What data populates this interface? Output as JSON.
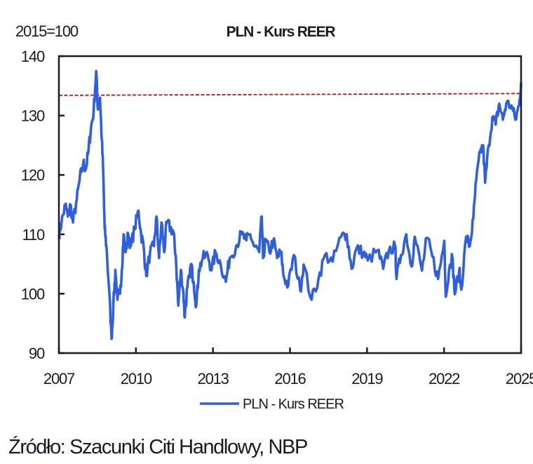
{
  "chart_data": {
    "type": "line",
    "title": "PLN - Kurs REER",
    "unit_label": "2015=100",
    "xlabel": "",
    "ylabel": "",
    "xlim": [
      2007,
      2025
    ],
    "ylim": [
      90,
      140
    ],
    "x_ticks": [
      2007,
      2010,
      2013,
      2016,
      2019,
      2022,
      2025
    ],
    "y_ticks": [
      90,
      100,
      110,
      120,
      130,
      140
    ],
    "grid": false,
    "legend": "bottom-center",
    "reference_line": {
      "style": "dashed",
      "color": "#b01818",
      "y_start": 133.4,
      "y_end": 133.7
    },
    "series": [
      {
        "name": "PLN - Kurs REER",
        "color": "#2f5fdc",
        "points": [
          [
            2007.0,
            110
          ],
          [
            2007.1,
            112
          ],
          [
            2007.25,
            115
          ],
          [
            2007.35,
            113
          ],
          [
            2007.45,
            115
          ],
          [
            2007.55,
            112
          ],
          [
            2007.7,
            116
          ],
          [
            2007.8,
            119
          ],
          [
            2007.95,
            122
          ],
          [
            2008.05,
            121
          ],
          [
            2008.15,
            124
          ],
          [
            2008.25,
            128
          ],
          [
            2008.35,
            130.5
          ],
          [
            2008.45,
            137.5
          ],
          [
            2008.52,
            131
          ],
          [
            2008.6,
            133
          ],
          [
            2008.67,
            126
          ],
          [
            2008.73,
            120
          ],
          [
            2008.78,
            111
          ],
          [
            2008.85,
            108
          ],
          [
            2008.95,
            101
          ],
          [
            2009.05,
            92.4
          ],
          [
            2009.12,
            98
          ],
          [
            2009.2,
            104
          ],
          [
            2009.28,
            99
          ],
          [
            2009.38,
            100
          ],
          [
            2009.45,
            104
          ],
          [
            2009.52,
            110
          ],
          [
            2009.6,
            107
          ],
          [
            2009.7,
            110
          ],
          [
            2009.8,
            108
          ],
          [
            2009.95,
            111
          ],
          [
            2010.1,
            114
          ],
          [
            2010.2,
            110
          ],
          [
            2010.3,
            108
          ],
          [
            2010.4,
            103
          ],
          [
            2010.55,
            107
          ],
          [
            2010.7,
            108
          ],
          [
            2010.8,
            113
          ],
          [
            2010.9,
            106
          ],
          [
            2011.0,
            112
          ],
          [
            2011.1,
            107
          ],
          [
            2011.2,
            112
          ],
          [
            2011.35,
            111
          ],
          [
            2011.45,
            110.5
          ],
          [
            2011.55,
            106.5
          ],
          [
            2011.65,
            98
          ],
          [
            2011.75,
            104
          ],
          [
            2011.85,
            100
          ],
          [
            2011.9,
            96
          ],
          [
            2012.0,
            101
          ],
          [
            2012.1,
            103
          ],
          [
            2012.15,
            105
          ],
          [
            2012.25,
            102
          ],
          [
            2012.35,
            98
          ],
          [
            2012.45,
            104
          ],
          [
            2012.6,
            106
          ],
          [
            2012.8,
            106.5
          ],
          [
            2012.95,
            104
          ],
          [
            2013.1,
            107
          ],
          [
            2013.3,
            105
          ],
          [
            2013.5,
            102
          ],
          [
            2013.65,
            106
          ],
          [
            2013.9,
            108
          ],
          [
            2014.1,
            110
          ],
          [
            2014.3,
            109
          ],
          [
            2014.45,
            110
          ],
          [
            2014.6,
            108
          ],
          [
            2014.8,
            107
          ],
          [
            2014.9,
            113
          ],
          [
            2014.95,
            106
          ],
          [
            2015.05,
            109
          ],
          [
            2015.2,
            107
          ],
          [
            2015.35,
            109
          ],
          [
            2015.5,
            106
          ],
          [
            2015.65,
            107
          ],
          [
            2015.75,
            103
          ],
          [
            2015.93,
            101.3
          ],
          [
            2016.15,
            106.5
          ],
          [
            2016.4,
            100.6
          ],
          [
            2016.53,
            104.9
          ],
          [
            2016.84,
            99
          ],
          [
            2017.11,
            102.5
          ],
          [
            2017.36,
            106.5
          ],
          [
            2017.66,
            105.4
          ],
          [
            2017.99,
            109.6
          ],
          [
            2018.21,
            110
          ],
          [
            2018.4,
            104.2
          ],
          [
            2018.59,
            107.6
          ],
          [
            2018.86,
            106.9
          ],
          [
            2019.03,
            105.6
          ],
          [
            2019.41,
            107.3
          ],
          [
            2019.63,
            104.2
          ],
          [
            2019.85,
            107.3
          ],
          [
            2020.1,
            107.9
          ],
          [
            2020.15,
            102.5
          ],
          [
            2020.32,
            106.5
          ],
          [
            2020.53,
            110
          ],
          [
            2020.73,
            104.6
          ],
          [
            2020.86,
            109.6
          ],
          [
            2021.14,
            103.9
          ],
          [
            2021.33,
            109.4
          ],
          [
            2021.55,
            106.2
          ],
          [
            2021.77,
            102.5
          ],
          [
            2022.01,
            108.9
          ],
          [
            2022.07,
            99.5
          ],
          [
            2022.23,
            104.9
          ],
          [
            2022.32,
            106.2
          ],
          [
            2022.42,
            99.9
          ],
          [
            2022.59,
            103.9
          ],
          [
            2022.67,
            100.7
          ],
          [
            2022.86,
            109.6
          ],
          [
            2023.0,
            108
          ],
          [
            2023.14,
            112.6
          ],
          [
            2023.25,
            119
          ],
          [
            2023.41,
            123.8
          ],
          [
            2023.52,
            125
          ],
          [
            2023.6,
            118.7
          ],
          [
            2023.74,
            125
          ],
          [
            2023.88,
            129.7
          ],
          [
            2024.01,
            128.5
          ],
          [
            2024.15,
            132
          ],
          [
            2024.29,
            129.3
          ],
          [
            2024.42,
            132
          ],
          [
            2024.62,
            131.7
          ],
          [
            2024.78,
            129.3
          ],
          [
            2024.92,
            131.7
          ],
          [
            2025.0,
            135.6
          ]
        ]
      }
    ]
  },
  "source": "Źródło: Szacunki Citi Handlowy, NBP"
}
